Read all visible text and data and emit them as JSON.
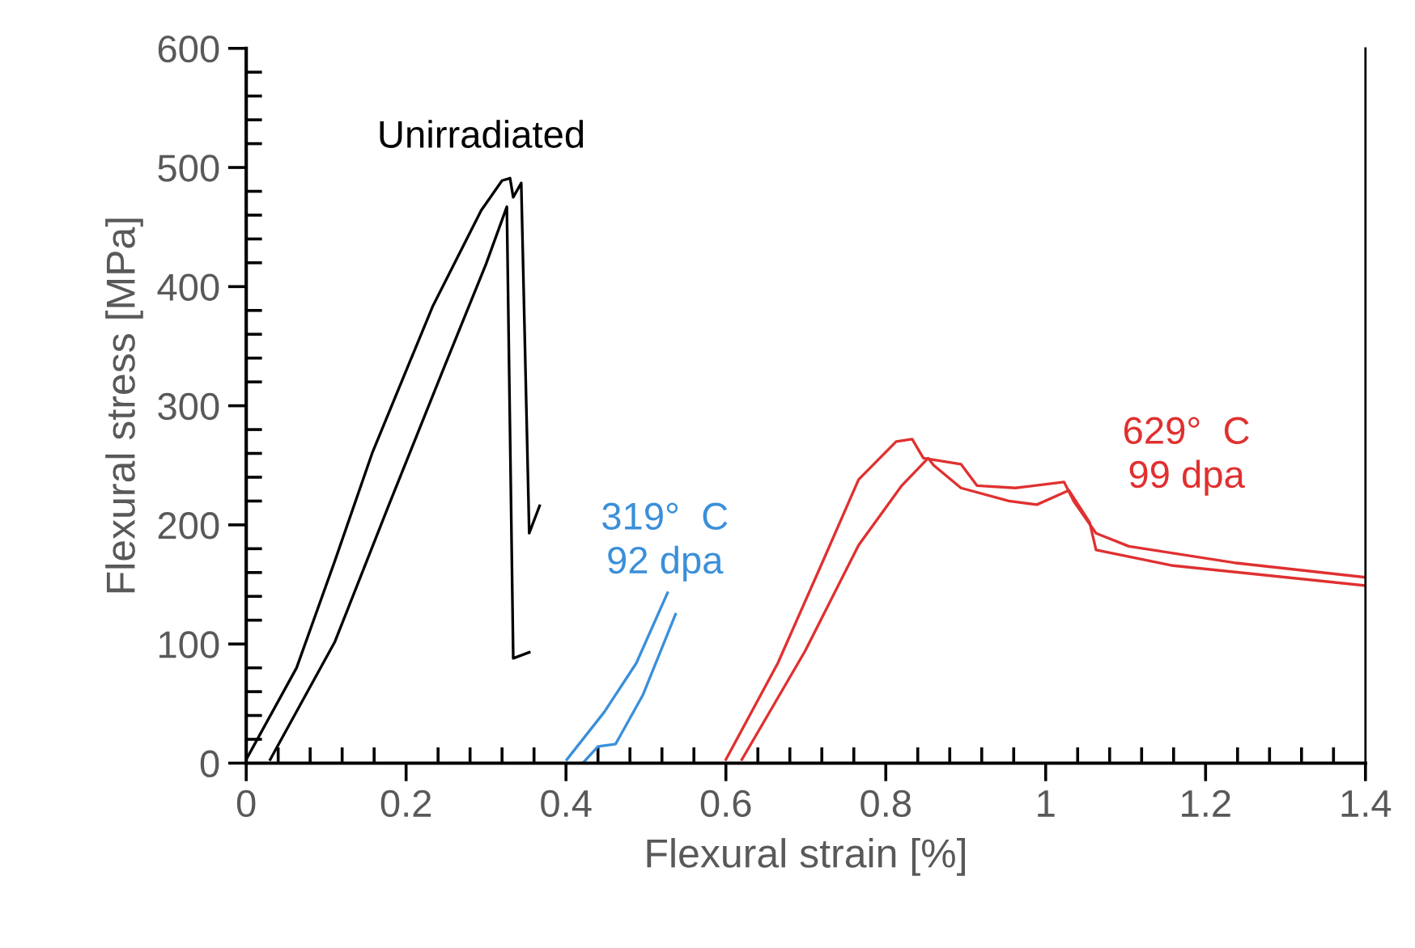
{
  "chart_data": {
    "type": "line",
    "xlabel": "Flexural strain [%]",
    "ylabel": "Flexural stress [MPa]",
    "xlim": [
      0,
      1.4
    ],
    "ylim": [
      0,
      600
    ],
    "xticks": [
      0,
      0.2,
      0.4,
      0.6,
      0.8,
      1,
      1.2,
      1.4
    ],
    "yticks": [
      0,
      100,
      200,
      300,
      400,
      500,
      600
    ],
    "grid": false,
    "legend": false,
    "marker": "none",
    "line_style": "solid",
    "series": [
      {
        "color": "#000000",
        "x": [
          0,
          0.063,
          0.111,
          0.158,
          0.233,
          0.294,
          0.32,
          0.33,
          0.334,
          0.344,
          0.354,
          0.367
        ],
        "values": [
          3,
          80,
          170,
          261,
          383,
          464,
          489,
          491,
          475,
          487,
          193,
          216
        ]
      },
      {
        "color": "#000000",
        "x": [
          0.03,
          0.111,
          0.178,
          0.245,
          0.3,
          0.326,
          0.334,
          0.354
        ],
        "values": [
          3,
          102,
          216,
          328,
          419,
          467,
          88,
          93
        ]
      },
      {
        "color": "#3a8fd9",
        "x": [
          0.401,
          0.448,
          0.488,
          0.527
        ],
        "values": [
          3,
          43,
          84,
          143
        ]
      },
      {
        "color": "#3a8fd9",
        "x": [
          0.421,
          0.44,
          0.462,
          0.496,
          0.537
        ],
        "values": [
          0,
          14,
          16,
          57,
          125
        ]
      },
      {
        "color": "#e03030",
        "x": [
          0.6,
          0.665,
          0.719,
          0.766,
          0.813,
          0.833,
          0.847,
          0.894,
          0.914,
          0.962,
          1.023,
          1.035,
          1.063,
          1.104,
          1.238,
          1.4
        ],
        "values": [
          3,
          84,
          166,
          238,
          270,
          272,
          256,
          251,
          233,
          231,
          236,
          220,
          193,
          182,
          168,
          156
        ]
      },
      {
        "color": "#e03030",
        "x": [
          0.62,
          0.699,
          0.766,
          0.82,
          0.853,
          0.86,
          0.894,
          0.954,
          0.989,
          1.029,
          1.055,
          1.063,
          1.157,
          1.4
        ],
        "values": [
          3,
          94,
          183,
          233,
          256,
          250,
          231,
          220,
          217,
          229,
          202,
          179,
          166,
          149
        ]
      }
    ],
    "annotations": [
      "Unirradiated",
      "319°  C\n92 dpa",
      "629°  C\n99 dpa"
    ]
  }
}
